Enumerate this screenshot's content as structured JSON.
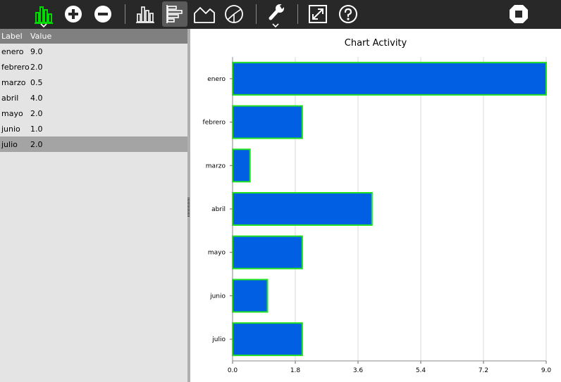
{
  "toolbar": {
    "buttons": [
      {
        "id": "chart-type-menu",
        "icon": "chart-activity-icon"
      },
      {
        "id": "add-row",
        "icon": "plus-circle-icon"
      },
      {
        "id": "remove-row",
        "icon": "minus-circle-icon"
      },
      {
        "id": "vertical-bars",
        "icon": "vertical-bar-chart-icon"
      },
      {
        "id": "horizontal-bars",
        "icon": "horizontal-bar-chart-icon",
        "active": true
      },
      {
        "id": "area-chart",
        "icon": "area-chart-icon"
      },
      {
        "id": "pie-chart",
        "icon": "pie-chart-icon"
      },
      {
        "id": "settings-menu",
        "icon": "wrench-icon"
      },
      {
        "id": "fullscreen",
        "icon": "fullscreen-icon"
      },
      {
        "id": "help",
        "icon": "help-icon"
      },
      {
        "id": "stop",
        "icon": "stop-icon"
      }
    ],
    "colors": {
      "background": "#282828",
      "accent": "#00dc00"
    }
  },
  "table": {
    "headers": {
      "label": "Label",
      "value": "Value"
    },
    "rows": [
      {
        "label": "enero",
        "value": "9.0"
      },
      {
        "label": "febrero",
        "value": "2.0"
      },
      {
        "label": "marzo",
        "value": "0.5"
      },
      {
        "label": "abril",
        "value": "4.0"
      },
      {
        "label": "mayo",
        "value": "2.0"
      },
      {
        "label": "junio",
        "value": "1.0"
      },
      {
        "label": "julio",
        "value": "2.0"
      }
    ],
    "selected_row": 6
  },
  "chart_data": {
    "type": "bar",
    "orientation": "horizontal",
    "title": "Chart Activity",
    "categories": [
      "enero",
      "febrero",
      "marzo",
      "abril",
      "mayo",
      "junio",
      "julio"
    ],
    "values": [
      9.0,
      2.0,
      0.5,
      4.0,
      2.0,
      1.0,
      2.0
    ],
    "xlim": [
      0,
      9.0
    ],
    "x_ticks": [
      "0.0",
      "1.8",
      "3.6",
      "5.4",
      "7.2",
      "9.0"
    ],
    "grid": true,
    "legend": "none",
    "bar_fill": "#005fe3",
    "bar_stroke": "#22e022"
  }
}
